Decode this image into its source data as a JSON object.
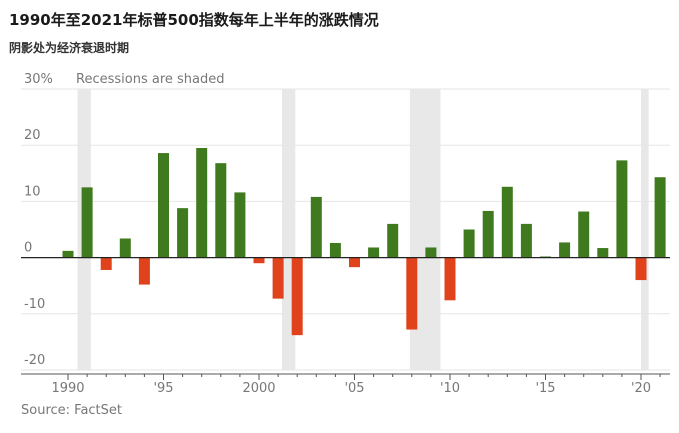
{
  "title": "1990年至2021年标普500指数每年上半年的涨跌情况",
  "subtitle": "阴影处为经济衰退时期",
  "source": "Source: FactSet",
  "annotation": "Recessions are shaded",
  "chart_data": {
    "type": "bar",
    "ylim": [
      -20,
      30
    ],
    "yticks": [
      {
        "value": 30,
        "label": "30%"
      },
      {
        "value": 20,
        "label": "20"
      },
      {
        "value": 10,
        "label": "10"
      },
      {
        "value": 0,
        "label": "0"
      },
      {
        "value": -10,
        "label": "-10"
      },
      {
        "value": -20,
        "label": "-20"
      }
    ],
    "xticks": [
      {
        "value": 1990,
        "label": "1990"
      },
      {
        "value": 1995,
        "label": "'95"
      },
      {
        "value": 2000,
        "label": "2000"
      },
      {
        "value": 2005,
        "label": "'05"
      },
      {
        "value": 2010,
        "label": "'10"
      },
      {
        "value": 2015,
        "label": "'15"
      },
      {
        "value": 2020,
        "label": "'20"
      }
    ],
    "recessions": [
      [
        1990.5,
        1991.2
      ],
      [
        2001.2,
        2001.9
      ],
      [
        2007.9,
        2009.5
      ],
      [
        2020.0,
        2020.4
      ]
    ],
    "x": [
      1990,
      1991,
      1992,
      1993,
      1994,
      1995,
      1996,
      1997,
      1998,
      1999,
      2000,
      2001,
      2002,
      2003,
      2004,
      2005,
      2006,
      2007,
      2008,
      2009,
      2010,
      2011,
      2012,
      2013,
      2014,
      2015,
      2016,
      2017,
      2018,
      2019,
      2020,
      2021
    ],
    "values": [
      1.2,
      12.5,
      -2.2,
      3.4,
      -4.8,
      18.6,
      8.8,
      19.5,
      16.8,
      11.6,
      -1.0,
      -7.3,
      -13.8,
      10.8,
      2.6,
      -1.7,
      1.8,
      6.0,
      -12.8,
      1.8,
      -7.6,
      5.0,
      8.3,
      12.6,
      6.0,
      0.2,
      2.7,
      8.2,
      1.7,
      17.3,
      -4.0,
      14.3
    ],
    "colors": {
      "positive": "#3f7a1e",
      "negative": "#e0421c",
      "recession": "#e8e8e8",
      "gridline": "#e6e6e6",
      "baseline": "#222222",
      "tick_label": "#777777"
    }
  }
}
